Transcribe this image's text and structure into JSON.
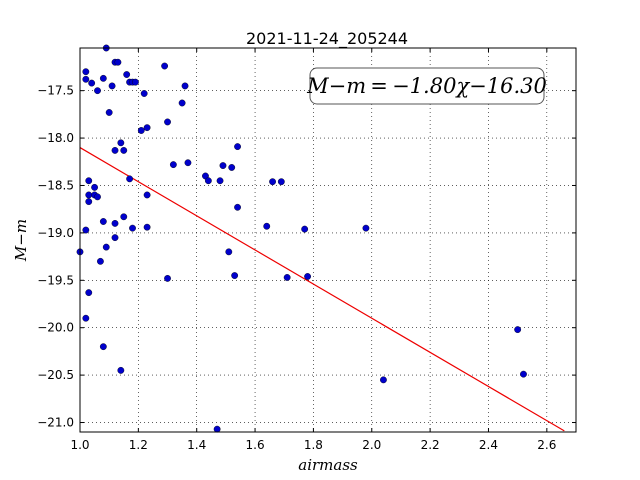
{
  "chart_data": {
    "type": "scatter",
    "title": "2021-11-24_205244",
    "xlabel": "airmass",
    "ylabel": "M−m",
    "xlim": [
      1.0,
      2.7
    ],
    "ylim": [
      -21.1,
      -17.05
    ],
    "y_inverted": false,
    "grid": true,
    "x_ticks": [
      1.0,
      1.2,
      1.4,
      1.6,
      1.8,
      2.0,
      2.2,
      2.4,
      2.6
    ],
    "x_tick_labels": [
      "1.0",
      "1.2",
      "1.4",
      "1.6",
      "1.8",
      "2.0",
      "2.2",
      "2.4",
      "2.6"
    ],
    "y_ticks": [
      -17.5,
      -18.0,
      -18.5,
      -19.0,
      -19.5,
      -20.0,
      -20.5,
      -21.0
    ],
    "y_tick_labels": [
      "−17.5",
      "−18.0",
      "−18.5",
      "−19.0",
      "−19.5",
      "−20.0",
      "−20.5",
      "−21.0"
    ],
    "annotation": "M−m = −1.80χ−16.30",
    "marker_color": "#0000cc",
    "fit_color": "#ee0000",
    "fit": {
      "slope": -1.8,
      "intercept": -16.3,
      "x_range": [
        1.0,
        2.66
      ]
    },
    "points": [
      [
        1.0,
        -19.2
      ],
      [
        1.02,
        -17.3
      ],
      [
        1.02,
        -17.38
      ],
      [
        1.02,
        -18.97
      ],
      [
        1.02,
        -19.9
      ],
      [
        1.03,
        -18.45
      ],
      [
        1.03,
        -18.6
      ],
      [
        1.03,
        -18.67
      ],
      [
        1.03,
        -19.63
      ],
      [
        1.04,
        -17.42
      ],
      [
        1.05,
        -18.52
      ],
      [
        1.05,
        -18.6
      ],
      [
        1.06,
        -17.5
      ],
      [
        1.06,
        -18.62
      ],
      [
        1.07,
        -19.3
      ],
      [
        1.08,
        -17.37
      ],
      [
        1.08,
        -18.88
      ],
      [
        1.08,
        -20.2
      ],
      [
        1.09,
        -17.05
      ],
      [
        1.09,
        -19.15
      ],
      [
        1.1,
        -17.73
      ],
      [
        1.11,
        -17.45
      ],
      [
        1.12,
        -17.2
      ],
      [
        1.12,
        -18.13
      ],
      [
        1.12,
        -18.9
      ],
      [
        1.12,
        -19.05
      ],
      [
        1.13,
        -17.2
      ],
      [
        1.14,
        -18.05
      ],
      [
        1.14,
        -20.45
      ],
      [
        1.15,
        -18.13
      ],
      [
        1.15,
        -18.83
      ],
      [
        1.16,
        -17.33
      ],
      [
        1.17,
        -17.41
      ],
      [
        1.17,
        -18.43
      ],
      [
        1.18,
        -17.41
      ],
      [
        1.18,
        -18.95
      ],
      [
        1.19,
        -17.41
      ],
      [
        1.21,
        -17.92
      ],
      [
        1.22,
        -17.53
      ],
      [
        1.23,
        -17.89
      ],
      [
        1.23,
        -18.6
      ],
      [
        1.23,
        -18.94
      ],
      [
        1.29,
        -17.24
      ],
      [
        1.3,
        -17.83
      ],
      [
        1.3,
        -19.48
      ],
      [
        1.32,
        -18.28
      ],
      [
        1.35,
        -17.63
      ],
      [
        1.36,
        -17.45
      ],
      [
        1.37,
        -18.26
      ],
      [
        1.43,
        -18.4
      ],
      [
        1.44,
        -18.45
      ],
      [
        1.47,
        -21.07
      ],
      [
        1.48,
        -18.45
      ],
      [
        1.49,
        -18.29
      ],
      [
        1.51,
        -19.2
      ],
      [
        1.52,
        -18.31
      ],
      [
        1.53,
        -19.45
      ],
      [
        1.54,
        -18.09
      ],
      [
        1.54,
        -18.73
      ],
      [
        1.64,
        -18.93
      ],
      [
        1.66,
        -18.46
      ],
      [
        1.69,
        -18.46
      ],
      [
        1.71,
        -19.47
      ],
      [
        1.77,
        -18.96
      ],
      [
        1.78,
        -19.46
      ],
      [
        1.98,
        -18.95
      ],
      [
        2.04,
        -20.55
      ],
      [
        2.5,
        -20.02
      ],
      [
        2.52,
        -20.49
      ]
    ]
  }
}
